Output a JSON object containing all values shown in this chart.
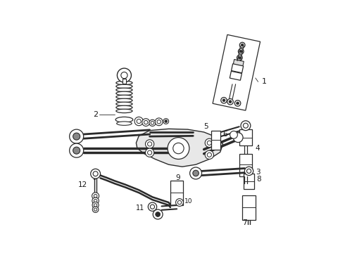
{
  "background_color": "#ffffff",
  "line_color": "#2a2a2a",
  "label_color": "#1a1a1a",
  "fig_width": 4.9,
  "fig_height": 3.6,
  "dpi": 100,
  "xlim": [
    0,
    490
  ],
  "ylim": [
    0,
    360
  ]
}
